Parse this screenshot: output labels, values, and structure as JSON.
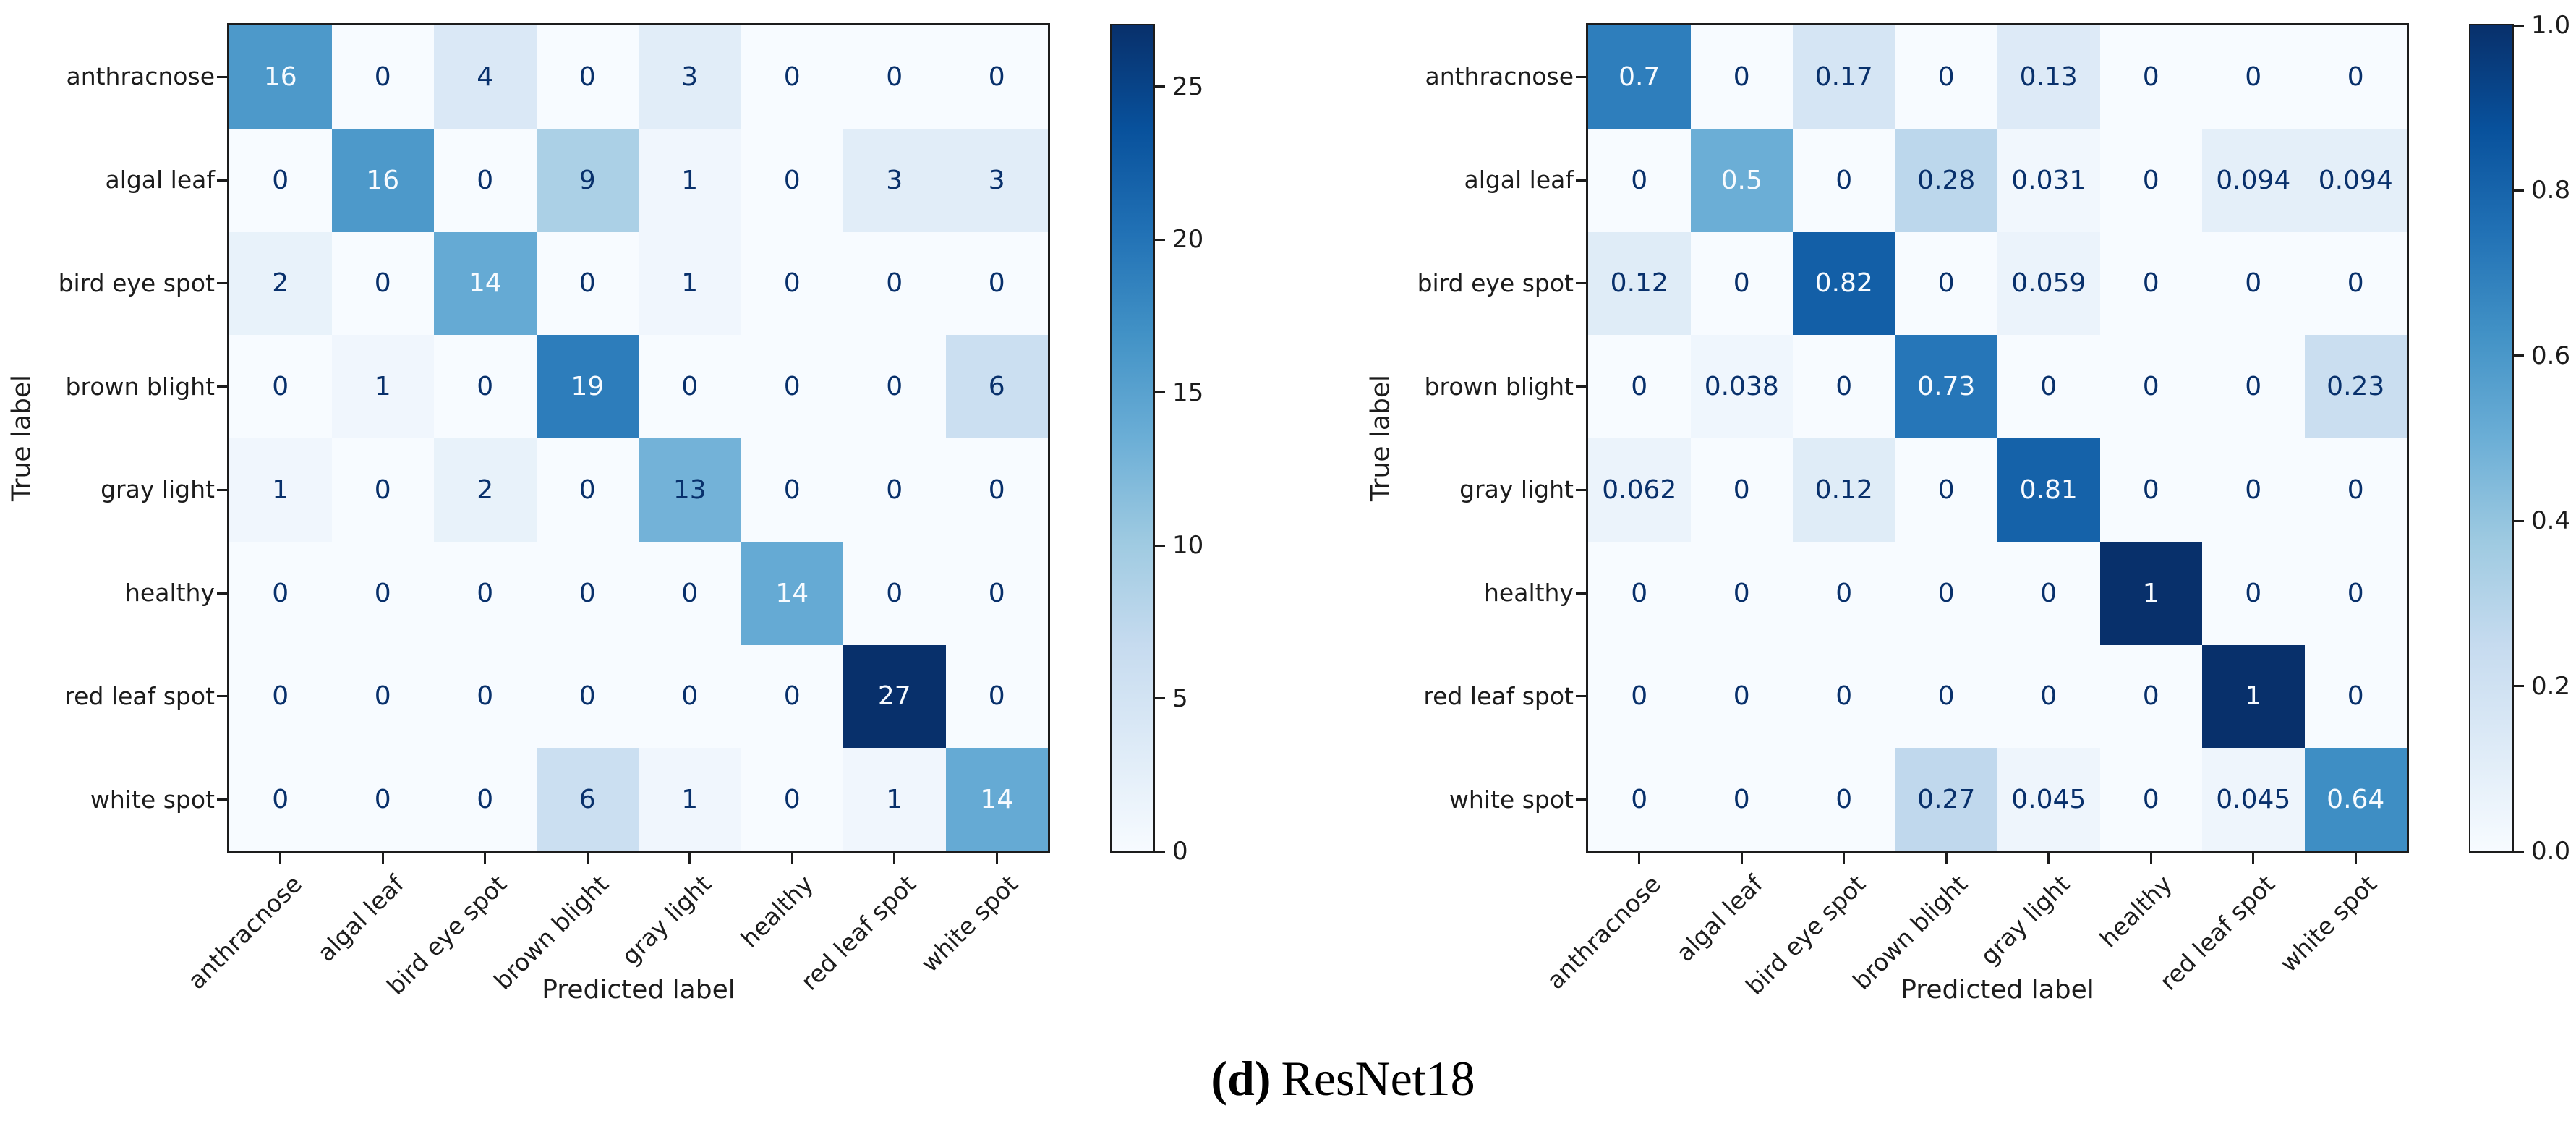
{
  "caption": {
    "index": "(d)",
    "model": "ResNet18"
  },
  "chart_data": [
    {
      "type": "heatmap",
      "title": "",
      "xlabel": "Predicted label",
      "ylabel": "True label",
      "colormap": "Blues",
      "legend_position": "right-colorbar",
      "grid": false,
      "categories": [
        "anthracnose",
        "algal leaf",
        "bird eye spot",
        "brown blight",
        "gray light",
        "healthy",
        "red leaf spot",
        "white spot"
      ],
      "matrix": [
        [
          "16",
          "0",
          "4",
          "0",
          "3",
          "0",
          "0",
          "0"
        ],
        [
          "0",
          "16",
          "0",
          "9",
          "1",
          "0",
          "3",
          "3"
        ],
        [
          "2",
          "0",
          "14",
          "0",
          "1",
          "0",
          "0",
          "0"
        ],
        [
          "0",
          "1",
          "0",
          "19",
          "0",
          "0",
          "0",
          "6"
        ],
        [
          "1",
          "0",
          "2",
          "0",
          "13",
          "0",
          "0",
          "0"
        ],
        [
          "0",
          "0",
          "0",
          "0",
          "0",
          "14",
          "0",
          "0"
        ],
        [
          "0",
          "0",
          "0",
          "0",
          "0",
          "0",
          "27",
          "0"
        ],
        [
          "0",
          "0",
          "0",
          "6",
          "1",
          "0",
          "1",
          "14"
        ]
      ],
      "vmin": 0,
      "vmax": 27,
      "colorbar_tick_labels": [
        "0",
        "5",
        "10",
        "15",
        "20",
        "25"
      ],
      "colorbar_tick_values": [
        0,
        5,
        10,
        15,
        20,
        25
      ]
    },
    {
      "type": "heatmap",
      "title": "",
      "xlabel": "Predicted label",
      "ylabel": "True label",
      "colormap": "Blues",
      "legend_position": "right-colorbar",
      "grid": false,
      "categories": [
        "anthracnose",
        "algal leaf",
        "bird eye spot",
        "brown blight",
        "gray light",
        "healthy",
        "red leaf spot",
        "white spot"
      ],
      "matrix": [
        [
          "0.7",
          "0",
          "0.17",
          "0",
          "0.13",
          "0",
          "0",
          "0"
        ],
        [
          "0",
          "0.5",
          "0",
          "0.28",
          "0.031",
          "0",
          "0.094",
          "0.094"
        ],
        [
          "0.12",
          "0",
          "0.82",
          "0",
          "0.059",
          "0",
          "0",
          "0"
        ],
        [
          "0",
          "0.038",
          "0",
          "0.73",
          "0",
          "0",
          "0",
          "0.23"
        ],
        [
          "0.062",
          "0",
          "0.12",
          "0",
          "0.81",
          "0",
          "0",
          "0"
        ],
        [
          "0",
          "0",
          "0",
          "0",
          "0",
          "1",
          "0",
          "0"
        ],
        [
          "0",
          "0",
          "0",
          "0",
          "0",
          "0",
          "1",
          "0"
        ],
        [
          "0",
          "0",
          "0",
          "0.27",
          "0.045",
          "0",
          "0.045",
          "0.64"
        ]
      ],
      "vmin": 0,
      "vmax": 1,
      "colorbar_tick_labels": [
        "0.0",
        "0.2",
        "0.4",
        "0.6",
        "0.8",
        "1.0"
      ],
      "colorbar_tick_values": [
        0,
        0.2,
        0.4,
        0.6,
        0.8,
        1.0
      ]
    }
  ],
  "colors": {
    "cmap_low": "#f7fbff",
    "cmap_high": "#08306b",
    "cell_text_dark": "#08306b",
    "cell_text_light": "#f7fbff",
    "axis": "#1c1c1c"
  }
}
